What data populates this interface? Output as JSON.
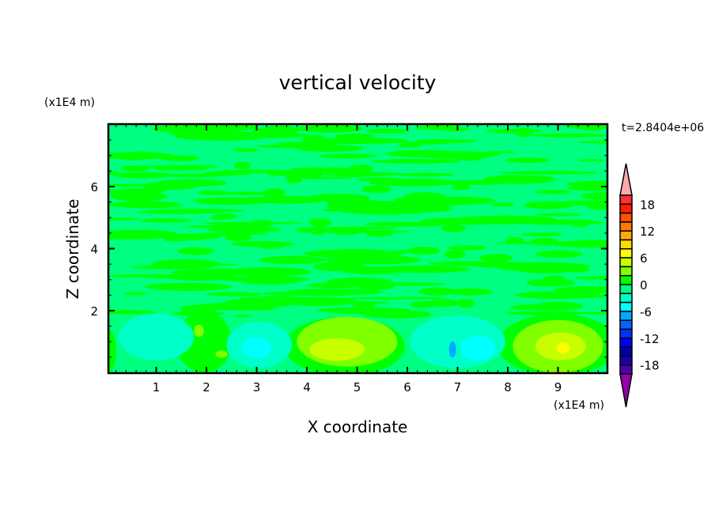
{
  "chart_data": {
    "type": "heatmap",
    "subtype": "filled-contour",
    "title": "vertical velocity",
    "xlabel": "X coordinate",
    "ylabel": "Z coordinate",
    "x_unit_label": "(x1E4 m)",
    "y_unit_label": "(x1E4 m)",
    "time_label": "t=2.8404e+06",
    "xlim": [
      0,
      10
    ],
    "ylim": [
      0,
      8
    ],
    "x_ticks": [
      "1",
      "2",
      "3",
      "4",
      "5",
      "6",
      "7",
      "8",
      "9"
    ],
    "y_ticks": [
      "2",
      "4",
      "6"
    ],
    "colorbar": {
      "levels_min": -20,
      "levels_max": 20,
      "level_step": 2,
      "extend": "both",
      "tick_labels": [
        "18",
        "12",
        "6",
        "0",
        "-6",
        "-12",
        "-18"
      ],
      "tick_values": [
        18,
        12,
        6,
        0,
        -6,
        -12,
        -18
      ],
      "colors_top_to_bottom": [
        "#ff3030",
        "#ff1e00",
        "#ff5200",
        "#ff7a00",
        "#ffaa00",
        "#ffdc00",
        "#ffff00",
        "#c8ff00",
        "#80ff00",
        "#00ff00",
        "#00ff80",
        "#00ffc8",
        "#00ffff",
        "#00aaff",
        "#0064ff",
        "#0032ff",
        "#0000ff",
        "#0000aa",
        "#1e00aa",
        "#5000aa"
      ],
      "over_color": "#ffaaaa",
      "under_color": "#9600aa"
    },
    "background_level_range": [
      -2,
      0
    ],
    "features": [
      {
        "range": [
          0,
          2
        ],
        "x": 1.95,
        "z": 1.0,
        "rx": 0.55,
        "rz": 1.0
      },
      {
        "range": [
          0,
          2
        ],
        "x": 4.75,
        "z": 0.85,
        "rx": 1.2,
        "rz": 0.95
      },
      {
        "range": [
          0,
          2
        ],
        "x": 9.0,
        "z": 0.9,
        "rx": 1.2,
        "rz": 1.0
      },
      {
        "range": [
          0,
          2
        ],
        "x": 0.05,
        "z": 0.7,
        "rx": 0.15,
        "rz": 0.7
      },
      {
        "range": [
          -4,
          -2
        ],
        "x": 1.0,
        "z": 1.15,
        "rx": 0.75,
        "rz": 0.75
      },
      {
        "range": [
          -4,
          -2
        ],
        "x": 3.05,
        "z": 0.9,
        "rx": 0.65,
        "rz": 0.75
      },
      {
        "range": [
          -4,
          -2
        ],
        "x": 7.0,
        "z": 1.0,
        "rx": 0.95,
        "rz": 0.85
      },
      {
        "range": [
          -6,
          -4
        ],
        "x": 3.0,
        "z": 0.8,
        "rx": 0.3,
        "rz": 0.35
      },
      {
        "range": [
          -6,
          -4
        ],
        "x": 7.4,
        "z": 0.8,
        "rx": 0.35,
        "rz": 0.4
      },
      {
        "range": [
          -8,
          -6
        ],
        "x": 6.9,
        "z": 0.75,
        "rx": 0.07,
        "rz": 0.26
      },
      {
        "range": [
          2,
          4
        ],
        "x": 4.8,
        "z": 1.0,
        "rx": 1.0,
        "rz": 0.8
      },
      {
        "range": [
          4,
          6
        ],
        "x": 4.6,
        "z": 0.75,
        "rx": 0.55,
        "rz": 0.36
      },
      {
        "range": [
          2,
          4
        ],
        "x": 9.0,
        "z": 0.85,
        "rx": 0.9,
        "rz": 0.85
      },
      {
        "range": [
          4,
          6
        ],
        "x": 9.05,
        "z": 0.85,
        "rx": 0.5,
        "rz": 0.45
      },
      {
        "range": [
          6,
          8
        ],
        "x": 9.1,
        "z": 0.8,
        "rx": 0.13,
        "rz": 0.18
      },
      {
        "range": [
          2,
          4
        ],
        "x": 1.85,
        "z": 1.35,
        "rx": 0.1,
        "rz": 0.2
      },
      {
        "range": [
          2,
          4
        ],
        "x": 2.3,
        "z": 0.6,
        "rx": 0.12,
        "rz": 0.12
      }
    ]
  }
}
